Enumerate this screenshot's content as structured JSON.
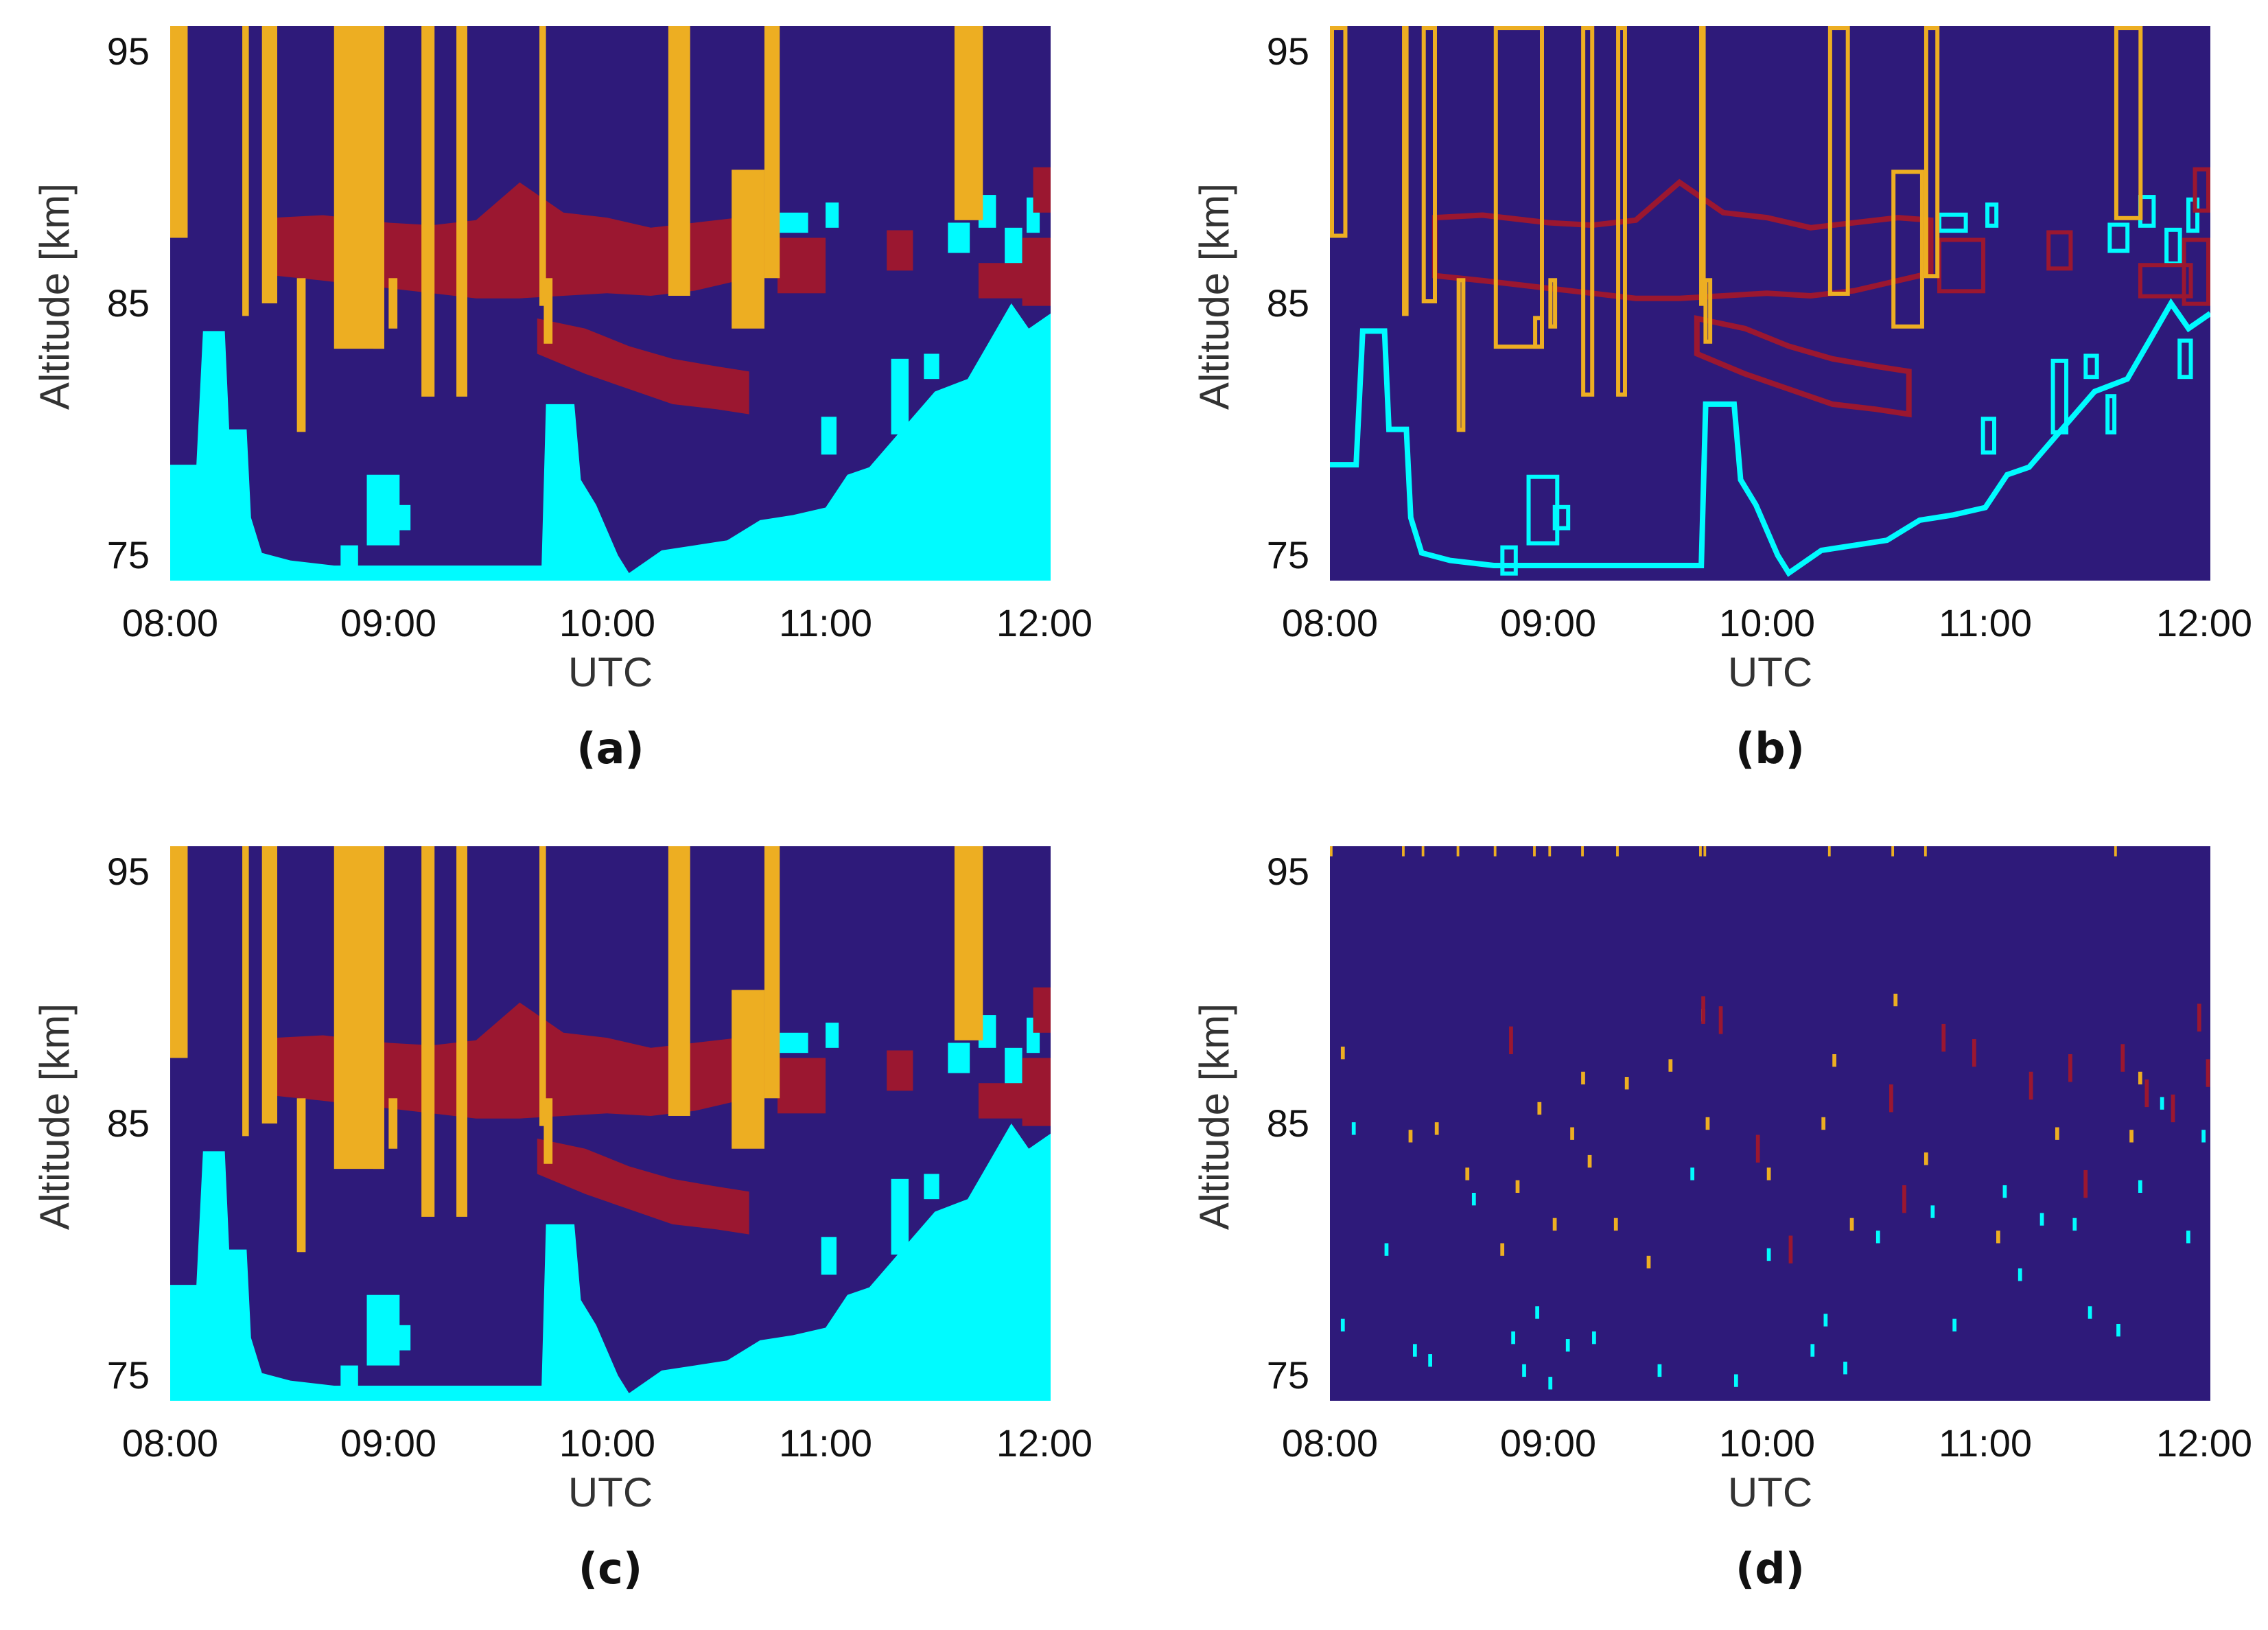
{
  "figure": {
    "panels": [
      {
        "id": "a",
        "caption": "(a)",
        "style": "fill"
      },
      {
        "id": "b",
        "caption": "(b)",
        "style": "outline"
      },
      {
        "id": "c",
        "caption": "(c)",
        "style": "fill"
      },
      {
        "id": "d",
        "caption": "(d)",
        "style": "dots"
      }
    ]
  },
  "colors": {
    "background": "#2e1a7a",
    "layer_upper": "#edae22",
    "layer_middle": "#9b1730",
    "layer_lower": "#00fbff"
  },
  "chart_data": {
    "type": "heatmap",
    "xlabel": "UTC",
    "ylabel": "Altitude [km]",
    "x_ticks": [
      "08:00",
      "09:00",
      "10:00",
      "11:00",
      "12:00"
    ],
    "x_tick_values": [
      8,
      9,
      10,
      11,
      12
    ],
    "y_ticks": [
      "75",
      "85",
      "95"
    ],
    "y_tick_values": [
      75,
      85,
      95
    ],
    "xlim": [
      8.0,
      12.03
    ],
    "ylim": [
      74,
      96
    ],
    "categories": [
      "upper",
      "middle",
      "lower"
    ],
    "upper_columns": [
      [
        8.0,
        8.08,
        87.6,
        96
      ],
      [
        8.33,
        8.36,
        84.5,
        96
      ],
      [
        8.42,
        8.49,
        85.0,
        96
      ],
      [
        8.58,
        8.62,
        79.9,
        86.0
      ],
      [
        8.75,
        8.98,
        83.2,
        96
      ],
      [
        8.93,
        8.98,
        83.2,
        84.5
      ],
      [
        9.0,
        9.04,
        84.0,
        86.0
      ],
      [
        9.15,
        9.21,
        81.3,
        96
      ],
      [
        9.31,
        9.36,
        81.3,
        96
      ],
      [
        9.69,
        9.72,
        84.9,
        96
      ],
      [
        9.71,
        9.75,
        83.4,
        86.0
      ],
      [
        10.28,
        10.38,
        85.3,
        96
      ],
      [
        10.57,
        10.72,
        84.0,
        90.3
      ],
      [
        10.72,
        10.79,
        86.0,
        96
      ],
      [
        11.59,
        11.72,
        88.3,
        96
      ]
    ],
    "middle_band": [
      [
        8.48,
        86.1,
        88.4
      ],
      [
        8.7,
        85.9,
        88.5
      ],
      [
        9.0,
        85.6,
        88.2
      ],
      [
        9.2,
        85.4,
        88.1
      ],
      [
        9.4,
        85.2,
        88.3
      ],
      [
        9.6,
        85.2,
        89.8
      ],
      [
        9.8,
        85.3,
        88.6
      ],
      [
        10.0,
        85.4,
        88.4
      ],
      [
        10.2,
        85.3,
        88.0
      ],
      [
        10.4,
        85.5,
        88.2
      ],
      [
        10.6,
        85.9,
        88.4
      ],
      [
        10.75,
        86.2,
        88.3
      ]
    ],
    "middle_lower_band": [
      [
        9.68,
        83.0,
        84.4
      ],
      [
        9.9,
        82.2,
        84.0
      ],
      [
        10.1,
        81.6,
        83.3
      ],
      [
        10.3,
        81.0,
        82.8
      ],
      [
        10.5,
        80.8,
        82.5
      ],
      [
        10.65,
        80.6,
        82.3
      ]
    ],
    "middle_patches": [
      [
        10.78,
        11.0,
        85.4,
        87.6
      ],
      [
        11.28,
        11.4,
        86.3,
        87.9
      ],
      [
        11.7,
        11.95,
        85.2,
        86.6
      ],
      [
        11.9,
        12.03,
        84.9,
        87.6
      ],
      [
        11.95,
        12.03,
        88.6,
        90.4
      ]
    ],
    "lower_profile": [
      [
        8.0,
        78.6
      ],
      [
        8.12,
        78.6
      ],
      [
        8.15,
        83.9
      ],
      [
        8.25,
        83.9
      ],
      [
        8.27,
        80.0
      ],
      [
        8.35,
        80.0
      ],
      [
        8.37,
        76.5
      ],
      [
        8.42,
        75.1
      ],
      [
        8.55,
        74.8
      ],
      [
        8.75,
        74.6
      ],
      [
        9.0,
        74.6
      ],
      [
        9.25,
        74.6
      ],
      [
        9.5,
        74.6
      ],
      [
        9.7,
        74.6
      ],
      [
        9.72,
        81.0
      ],
      [
        9.85,
        81.0
      ],
      [
        9.88,
        78.0
      ],
      [
        9.95,
        77.0
      ],
      [
        10.05,
        75.0
      ],
      [
        10.1,
        74.3
      ],
      [
        10.25,
        75.2
      ],
      [
        10.4,
        75.4
      ],
      [
        10.55,
        75.6
      ],
      [
        10.7,
        76.4
      ],
      [
        10.85,
        76.6
      ],
      [
        11.0,
        76.9
      ],
      [
        11.1,
        78.2
      ],
      [
        11.2,
        78.5
      ],
      [
        11.35,
        80.0
      ],
      [
        11.5,
        81.5
      ],
      [
        11.65,
        82.0
      ],
      [
        11.75,
        83.5
      ],
      [
        11.85,
        85.0
      ],
      [
        11.93,
        84.0
      ],
      [
        12.03,
        84.6
      ]
    ],
    "lower_patches": [
      [
        8.9,
        9.05,
        75.4,
        78.2
      ],
      [
        9.02,
        9.1,
        76.0,
        77.0
      ],
      [
        8.78,
        8.86,
        74.2,
        75.4
      ],
      [
        10.98,
        11.05,
        79.0,
        80.5
      ],
      [
        11.3,
        11.38,
        79.8,
        82.8
      ],
      [
        11.45,
        11.52,
        82.0,
        83.0
      ],
      [
        11.55,
        11.6,
        79.8,
        81.4
      ],
      [
        11.88,
        11.95,
        82.0,
        83.6
      ],
      [
        10.78,
        10.92,
        87.8,
        88.6
      ],
      [
        11.0,
        11.06,
        88.0,
        89.0
      ],
      [
        11.56,
        11.66,
        87.0,
        88.2
      ],
      [
        11.7,
        11.78,
        88.0,
        89.3
      ],
      [
        11.82,
        11.9,
        86.5,
        88.0
      ],
      [
        11.92,
        11.98,
        87.8,
        89.2
      ]
    ],
    "sparse_points": [
      {
        "c": "upper",
        "t": [
          8.05,
          8.36,
          8.48,
          8.62,
          8.78,
          8.85,
          8.95,
          9.02,
          9.1,
          9.15,
          9.18,
          9.3,
          9.35,
          9.45,
          9.55,
          9.7,
          9.72,
          10.0,
          10.25,
          10.3,
          10.38,
          10.58,
          10.72,
          11.05,
          11.32,
          11.66,
          11.7
        ],
        "h": [
          87.8,
          84.5,
          84.8,
          83.0,
          80.0,
          82.5,
          85.6,
          81.0,
          84.6,
          86.8,
          83.5,
          81.0,
          86.6,
          79.5,
          87.3,
          89.3,
          85.0,
          83.0,
          85.0,
          87.5,
          81.0,
          89.9,
          83.6,
          80.5,
          84.6,
          84.5,
          86.8
        ]
      },
      {
        "c": "middle",
        "t": [
          8.82,
          9.7,
          9.78,
          9.95,
          10.1,
          10.56,
          10.62,
          10.8,
          10.94,
          11.2,
          11.38,
          11.45,
          11.62,
          11.73,
          11.85,
          11.97,
          12.01
        ],
        "h": [
          88.3,
          89.5,
          89.1,
          84.0,
          80.0,
          86.0,
          82.0,
          88.4,
          87.8,
          86.5,
          87.2,
          82.6,
          87.6,
          86.2,
          85.6,
          89.2,
          87.0
        ],
        "tall": true
      },
      {
        "c": "lower",
        "t": [
          8.05,
          8.1,
          8.25,
          8.38,
          8.45,
          8.65,
          8.83,
          8.88,
          8.94,
          9.0,
          9.08,
          9.2,
          9.5,
          9.65,
          9.85,
          10.0,
          10.2,
          10.26,
          10.35,
          10.5,
          10.75,
          10.85,
          11.08,
          11.15,
          11.25,
          11.4,
          11.47,
          11.6,
          11.7,
          11.8,
          11.92,
          11.99
        ],
        "h": [
          77.0,
          84.8,
          80.0,
          76.0,
          75.6,
          82.0,
          76.5,
          75.2,
          77.5,
          74.7,
          76.2,
          76.5,
          75.2,
          83.0,
          74.8,
          79.8,
          76.0,
          77.2,
          75.3,
          80.5,
          81.5,
          77.0,
          82.3,
          79.0,
          81.2,
          81.0,
          77.5,
          76.8,
          82.5,
          85.8,
          80.5,
          84.5
        ]
      }
    ]
  }
}
